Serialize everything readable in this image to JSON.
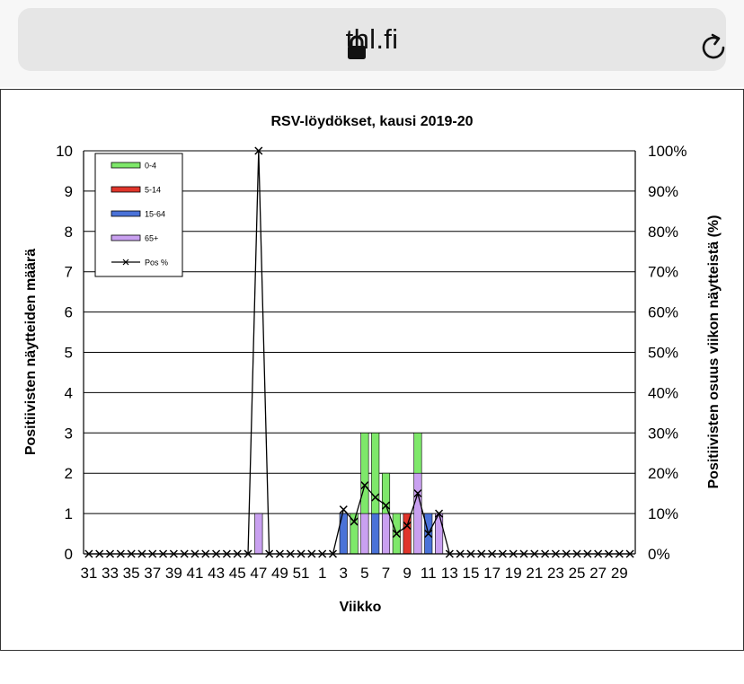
{
  "browser": {
    "url": "thl.fi",
    "icons": {
      "lock": "lock-icon",
      "reload": "reload-icon"
    }
  },
  "chart_data": {
    "type": "bar",
    "stacked": true,
    "title": "RSV-löydökset, kausi 2019-20",
    "xlabel": "Viikko",
    "ylabel_left": "Positiivisten näytteiden määrä",
    "ylabel_right": "Positiivisten osuus viikon näytteistä (%)",
    "ylim": [
      0,
      10
    ],
    "y_ticks": [
      "0",
      "1",
      "2",
      "3",
      "4",
      "5",
      "6",
      "7",
      "8",
      "9",
      "10"
    ],
    "y2lim": [
      0,
      100
    ],
    "y2_ticks": [
      "0%",
      "10%",
      "20%",
      "30%",
      "40%",
      "50%",
      "60%",
      "70%",
      "80%",
      "90%",
      "100%"
    ],
    "grid": true,
    "legend_position": "top-left",
    "categories": [
      "31",
      "32",
      "33",
      "34",
      "35",
      "36",
      "37",
      "38",
      "39",
      "40",
      "41",
      "42",
      "43",
      "44",
      "45",
      "46",
      "47",
      "48",
      "49",
      "50",
      "51",
      "52",
      "1",
      "2",
      "3",
      "4",
      "5",
      "6",
      "7",
      "8",
      "9",
      "10",
      "11",
      "12",
      "13",
      "14",
      "15",
      "16",
      "17",
      "18",
      "19",
      "20",
      "21",
      "22",
      "23",
      "24",
      "25",
      "26",
      "27",
      "28",
      "29",
      "30"
    ],
    "x_tick_labels": [
      "31",
      "33",
      "35",
      "37",
      "39",
      "41",
      "43",
      "45",
      "47",
      "49",
      "51",
      "1",
      "3",
      "5",
      "7",
      "9",
      "11",
      "13",
      "15",
      "17",
      "19",
      "21",
      "23",
      "25",
      "27",
      "29"
    ],
    "series": [
      {
        "name": "65+",
        "color": "#c9a0f0",
        "values": [
          0,
          0,
          0,
          0,
          0,
          0,
          0,
          0,
          0,
          0,
          0,
          0,
          0,
          0,
          0,
          0,
          1,
          0,
          0,
          0,
          0,
          0,
          0,
          0,
          0,
          0,
          1,
          0,
          1,
          0,
          0,
          2,
          0,
          1,
          0,
          0,
          0,
          0,
          0,
          0,
          0,
          0,
          0,
          0,
          0,
          0,
          0,
          0,
          0,
          0,
          0,
          0
        ]
      },
      {
        "name": "15-64",
        "color": "#4a72d8",
        "values": [
          0,
          0,
          0,
          0,
          0,
          0,
          0,
          0,
          0,
          0,
          0,
          0,
          0,
          0,
          0,
          0,
          0,
          0,
          0,
          0,
          0,
          0,
          0,
          0,
          1,
          0,
          0,
          1,
          0,
          0,
          0,
          0,
          1,
          0,
          0,
          0,
          0,
          0,
          0,
          0,
          0,
          0,
          0,
          0,
          0,
          0,
          0,
          0,
          0,
          0,
          0,
          0
        ]
      },
      {
        "name": "5-14",
        "color": "#e0352b",
        "values": [
          0,
          0,
          0,
          0,
          0,
          0,
          0,
          0,
          0,
          0,
          0,
          0,
          0,
          0,
          0,
          0,
          0,
          0,
          0,
          0,
          0,
          0,
          0,
          0,
          0,
          0,
          0,
          0,
          0,
          0,
          1,
          0,
          0,
          0,
          0,
          0,
          0,
          0,
          0,
          0,
          0,
          0,
          0,
          0,
          0,
          0,
          0,
          0,
          0,
          0,
          0,
          0
        ]
      },
      {
        "name": "0-4",
        "color": "#7ee86a",
        "values": [
          0,
          0,
          0,
          0,
          0,
          0,
          0,
          0,
          0,
          0,
          0,
          0,
          0,
          0,
          0,
          0,
          0,
          0,
          0,
          0,
          0,
          0,
          0,
          0,
          0,
          1,
          2,
          2,
          1,
          1,
          0,
          1,
          0,
          0,
          0,
          0,
          0,
          0,
          0,
          0,
          0,
          0,
          0,
          0,
          0,
          0,
          0,
          0,
          0,
          0,
          0,
          0
        ]
      },
      {
        "name": "Pos %",
        "type": "line",
        "axis": "right",
        "color": "#000000",
        "values": [
          0,
          0,
          0,
          0,
          0,
          0,
          0,
          0,
          0,
          0,
          0,
          0,
          0,
          0,
          0,
          0,
          100,
          0,
          0,
          0,
          0,
          0,
          0,
          0,
          11,
          8,
          17,
          14,
          12,
          5,
          7,
          15,
          5,
          10,
          0,
          0,
          0,
          0,
          0,
          0,
          0,
          0,
          0,
          0,
          0,
          0,
          0,
          0,
          0,
          0,
          0,
          0
        ]
      }
    ],
    "legend": [
      {
        "label": "0-4",
        "color": "#7ee86a",
        "kind": "bar"
      },
      {
        "label": "5-14",
        "color": "#e0352b",
        "kind": "bar"
      },
      {
        "label": "15-64",
        "color": "#4a72d8",
        "kind": "bar"
      },
      {
        "label": "65+",
        "color": "#c9a0f0",
        "kind": "bar"
      },
      {
        "label": "Pos %",
        "color": "#000000",
        "kind": "line"
      }
    ]
  }
}
